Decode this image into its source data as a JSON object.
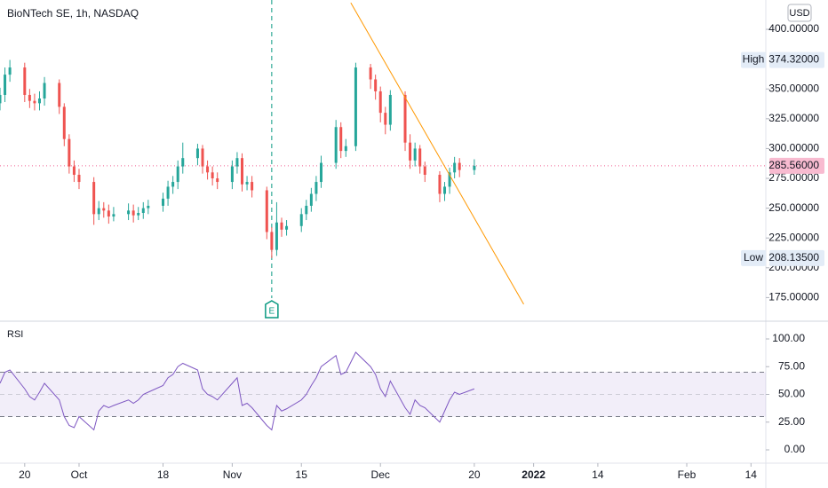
{
  "chart_data": [
    {
      "type": "candlestick",
      "title": "BioNTech SE, 1h, NASDAQ",
      "currency": "USD",
      "up_color": "#26a69a",
      "down_color": "#ef5350",
      "x": [
        "2021-09-15",
        "2021-09-16",
        "2021-09-17",
        "2021-09-20",
        "2021-09-21",
        "2021-09-22",
        "2021-09-23",
        "2021-09-24",
        "2021-09-27",
        "2021-09-28",
        "2021-09-29",
        "2021-09-30",
        "2021-10-01",
        "2021-10-04",
        "2021-10-05",
        "2021-10-06",
        "2021-10-07",
        "2021-10-08",
        "2021-10-11",
        "2021-10-12",
        "2021-10-13",
        "2021-10-14",
        "2021-10-15",
        "2021-10-18",
        "2021-10-19",
        "2021-10-20",
        "2021-10-21",
        "2021-10-22",
        "2021-10-25",
        "2021-10-26",
        "2021-10-27",
        "2021-10-28",
        "2021-10-29",
        "2021-11-01",
        "2021-11-02",
        "2021-11-03",
        "2021-11-04",
        "2021-11-05",
        "2021-11-08",
        "2021-11-09",
        "2021-11-10",
        "2021-11-11",
        "2021-11-12",
        "2021-11-15",
        "2021-11-16",
        "2021-11-17",
        "2021-11-18",
        "2021-11-19",
        "2021-11-22",
        "2021-11-23",
        "2021-11-24",
        "2021-11-26",
        "2021-11-29",
        "2021-11-30",
        "2021-12-01",
        "2021-12-02",
        "2021-12-03",
        "2021-12-06",
        "2021-12-07",
        "2021-12-08",
        "2021-12-09",
        "2021-12-10",
        "2021-12-13",
        "2021-12-14",
        "2021-12-15",
        "2021-12-16",
        "2021-12-17",
        "2021-12-20"
      ],
      "open": [
        338,
        345,
        362,
        368,
        345,
        340,
        338,
        342,
        355,
        335,
        308,
        285,
        278,
        272,
        245,
        250,
        248,
        243,
        245,
        248,
        244,
        246,
        250,
        252,
        258,
        268,
        272,
        285,
        292,
        300,
        285,
        280,
        275,
        272,
        285,
        292,
        270,
        272,
        265,
        230,
        215,
        238,
        232,
        235,
        245,
        252,
        262,
        272,
        288,
        318,
        298,
        302,
        368,
        358,
        348,
        330,
        320,
        345,
        305,
        290,
        300,
        285,
        278,
        262,
        268,
        280,
        288,
        282
      ],
      "high": [
        351,
        368,
        374.32,
        372,
        350,
        346,
        348,
        360,
        358,
        338,
        312,
        290,
        283,
        276,
        256,
        255,
        253,
        251,
        254,
        253,
        251,
        255,
        257,
        263,
        273,
        277,
        290,
        305,
        304,
        303,
        290,
        285,
        280,
        290,
        297,
        296,
        277,
        277,
        268,
        234,
        255,
        242,
        240,
        250,
        257,
        267,
        277,
        294,
        324,
        322,
        308,
        372,
        371,
        362,
        352,
        335,
        349,
        348,
        312,
        305,
        303,
        289,
        281,
        272,
        284,
        293,
        292,
        291
      ],
      "low": [
        332,
        339,
        356,
        339,
        334,
        332,
        332,
        336,
        329,
        302,
        279,
        272,
        266,
        236,
        240,
        242,
        237,
        239,
        240,
        238,
        240,
        241,
        245,
        247,
        252,
        262,
        266,
        279,
        286,
        279,
        274,
        269,
        266,
        266,
        279,
        264,
        265,
        259,
        224,
        208.135,
        210,
        226,
        227,
        230,
        240,
        247,
        256,
        267,
        283,
        292,
        293,
        298,
        350,
        341,
        322,
        312,
        315,
        298,
        283,
        285,
        279,
        272,
        255,
        256,
        262,
        275,
        276,
        278
      ],
      "close": [
        345,
        362,
        368,
        345,
        340,
        338,
        342,
        355,
        335,
        308,
        285,
        278,
        272,
        245,
        250,
        248,
        243,
        245,
        248,
        244,
        246,
        250,
        252,
        258,
        268,
        272,
        285,
        292,
        300,
        285,
        280,
        275,
        272,
        285,
        292,
        270,
        272,
        265,
        230,
        215,
        238,
        232,
        235,
        245,
        252,
        262,
        272,
        288,
        318,
        298,
        302,
        368,
        358,
        348,
        330,
        320,
        345,
        305,
        290,
        300,
        285,
        278,
        262,
        268,
        280,
        288,
        282,
        285.56
      ],
      "xlim": [
        "2021-09-15",
        "2022-02-17"
      ],
      "ylim": [
        155.2,
        424.6
      ],
      "yticks": [
        {
          "value": 400,
          "label": "400.00000"
        },
        {
          "value": 350,
          "label": "350.00000"
        },
        {
          "value": 325,
          "label": "325.00000"
        },
        {
          "value": 300,
          "label": "300.00000"
        },
        {
          "value": 275,
          "label": "275.00000"
        },
        {
          "value": 250,
          "label": "250.00000"
        },
        {
          "value": 225,
          "label": "225.00000"
        },
        {
          "value": 200,
          "label": "200.00000"
        },
        {
          "value": 175,
          "label": "175.00000"
        }
      ],
      "high_marker": {
        "name": "High",
        "value": 374.32,
        "label": "374.32000"
      },
      "low_marker": {
        "name": "Low",
        "value": 208.135,
        "label": "208.13500"
      },
      "last_price": {
        "value": 285.56,
        "label": "285.56000"
      },
      "earnings": {
        "label": "E",
        "date": "2021-11-09",
        "color": "#089981"
      },
      "trendline": {
        "color": "#ff9800",
        "points": [
          {
            "date": "2021-11-25",
            "price": 422.3
          },
          {
            "date": "2021-12-30",
            "price": 169.4
          }
        ]
      }
    },
    {
      "type": "line",
      "title": "RSI",
      "color": "#7e57c2",
      "x": [
        "2021-09-15",
        "2021-09-16",
        "2021-09-17",
        "2021-09-20",
        "2021-09-21",
        "2021-09-22",
        "2021-09-23",
        "2021-09-24",
        "2021-09-27",
        "2021-09-28",
        "2021-09-29",
        "2021-09-30",
        "2021-10-01",
        "2021-10-04",
        "2021-10-05",
        "2021-10-06",
        "2021-10-07",
        "2021-10-08",
        "2021-10-11",
        "2021-10-12",
        "2021-10-13",
        "2021-10-14",
        "2021-10-15",
        "2021-10-18",
        "2021-10-19",
        "2021-10-20",
        "2021-10-21",
        "2021-10-22",
        "2021-10-25",
        "2021-10-26",
        "2021-10-27",
        "2021-10-28",
        "2021-10-29",
        "2021-11-01",
        "2021-11-02",
        "2021-11-03",
        "2021-11-04",
        "2021-11-05",
        "2021-11-08",
        "2021-11-09",
        "2021-11-10",
        "2021-11-11",
        "2021-11-12",
        "2021-11-15",
        "2021-11-16",
        "2021-11-17",
        "2021-11-18",
        "2021-11-19",
        "2021-11-22",
        "2021-11-23",
        "2021-11-24",
        "2021-11-26",
        "2021-11-29",
        "2021-11-30",
        "2021-12-01",
        "2021-12-02",
        "2021-12-03",
        "2021-12-06",
        "2021-12-07",
        "2021-12-08",
        "2021-12-09",
        "2021-12-10",
        "2021-12-13",
        "2021-12-14",
        "2021-12-15",
        "2021-12-16",
        "2021-12-17",
        "2021-12-20"
      ],
      "values": [
        60,
        70,
        72,
        55,
        48,
        45,
        52,
        60,
        45,
        30,
        22,
        20,
        30,
        18,
        35,
        40,
        38,
        40,
        45,
        42,
        45,
        50,
        52,
        58,
        65,
        68,
        75,
        78,
        72,
        55,
        50,
        48,
        45,
        60,
        65,
        40,
        42,
        38,
        22,
        18,
        40,
        35,
        37,
        45,
        50,
        58,
        65,
        75,
        85,
        68,
        70,
        88,
        75,
        68,
        55,
        48,
        62,
        38,
        32,
        45,
        40,
        38,
        25,
        35,
        45,
        52,
        50,
        55
      ],
      "upper_band": 70,
      "middle_band": 50,
      "lower_band": 30,
      "xlim": [
        "2021-09-15",
        "2022-02-17"
      ],
      "ylim": [
        -12,
        116
      ],
      "yticks": [
        {
          "value": 100,
          "label": "100.00"
        },
        {
          "value": 75,
          "label": "75.00"
        },
        {
          "value": 50,
          "label": "50.00"
        },
        {
          "value": 25,
          "label": "25.00"
        },
        {
          "value": 0,
          "label": "0.00"
        }
      ],
      "xticks": [
        {
          "value": "2021-09-20",
          "label": "20"
        },
        {
          "value": "2021-10-01",
          "label": "Oct"
        },
        {
          "value": "2021-10-18",
          "label": "18"
        },
        {
          "value": "2021-11-01",
          "label": "Nov"
        },
        {
          "value": "2021-11-15",
          "label": "15"
        },
        {
          "value": "2021-12-01",
          "label": "Dec"
        },
        {
          "value": "2021-12-20",
          "label": "20"
        },
        {
          "value": "2022-01-01",
          "label": "2022"
        },
        {
          "value": "2022-01-14",
          "label": "14"
        },
        {
          "value": "2022-02-01",
          "label": "Feb"
        },
        {
          "value": "2022-02-14",
          "label": "14"
        }
      ]
    }
  ]
}
